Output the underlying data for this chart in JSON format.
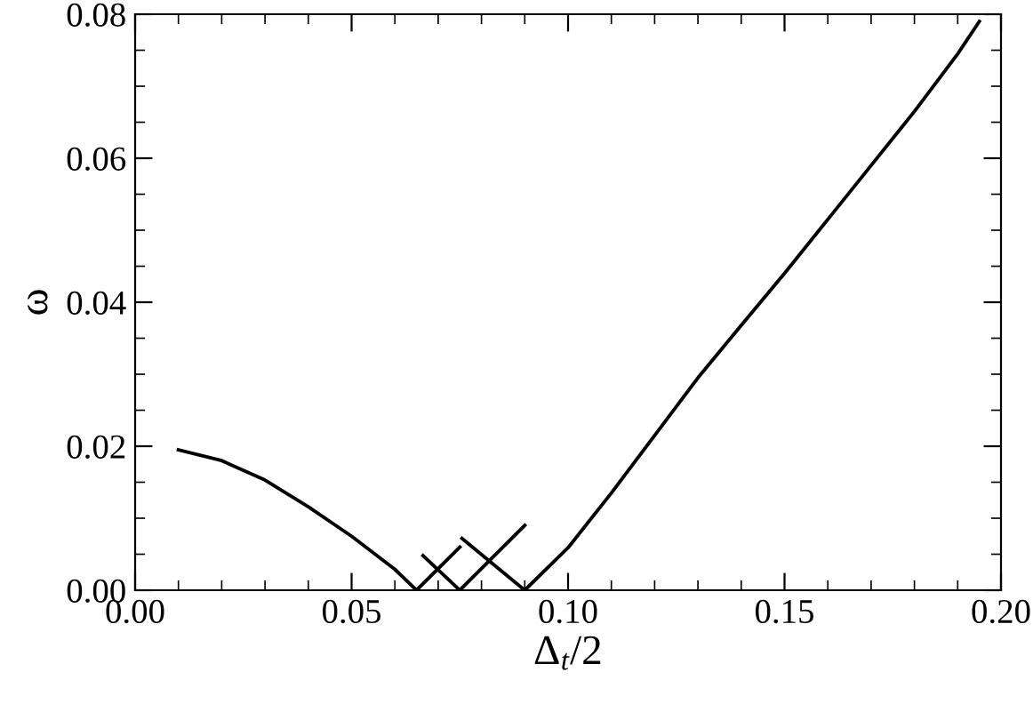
{
  "chart_data": {
    "type": "line",
    "xlabel": "Δ$_{t}$/2",
    "ylabel": "ω",
    "xlim": [
      0,
      0.2
    ],
    "ylim": [
      0,
      0.08
    ],
    "xticks": [
      {
        "value": 0,
        "label": "0.00"
      },
      {
        "value": 0.05,
        "label": "0.05"
      },
      {
        "value": 0.1,
        "label": "0.10"
      },
      {
        "value": 0.15,
        "label": "0.15"
      },
      {
        "value": 0.2,
        "label": "0.20"
      }
    ],
    "yticks": [
      {
        "value": 0,
        "label": "0.00"
      },
      {
        "value": 0.02,
        "label": "0.02"
      },
      {
        "value": 0.04,
        "label": "0.04"
      },
      {
        "value": 0.06,
        "label": "0.06"
      },
      {
        "value": 0.08,
        "label": "0.08"
      }
    ],
    "grid": false,
    "legend": false,
    "marker": "none",
    "line_style": "solid",
    "series": [
      {
        "color": "#000000",
        "x": [
          0.01,
          0.02,
          0.03,
          0.04,
          0.05,
          0.06,
          0.065
        ],
        "values": [
          0.0195,
          0.018,
          0.0153,
          0.0116,
          0.0075,
          0.0029,
          0
        ]
      },
      {
        "color": "#000000",
        "x": [
          0.065,
          0.075
        ],
        "values": [
          0,
          0.006
        ]
      },
      {
        "color": "#000000",
        "x": [
          0.0665,
          0.075
        ],
        "values": [
          0.0048,
          0
        ]
      },
      {
        "color": "#000000",
        "x": [
          0.075,
          0.09
        ],
        "values": [
          0,
          0.009
        ]
      },
      {
        "color": "#000000",
        "x": [
          0.0755,
          0.09
        ],
        "values": [
          0.0072,
          0
        ]
      },
      {
        "color": "#000000",
        "x": [
          0.09,
          0.1,
          0.11,
          0.12,
          0.13,
          0.14,
          0.15,
          0.16,
          0.17,
          0.18,
          0.19,
          0.195
        ],
        "values": [
          0,
          0.0059,
          0.0135,
          0.0215,
          0.0295,
          0.0368,
          0.044,
          0.0515,
          0.059,
          0.0665,
          0.0745,
          0.079
        ]
      }
    ]
  }
}
